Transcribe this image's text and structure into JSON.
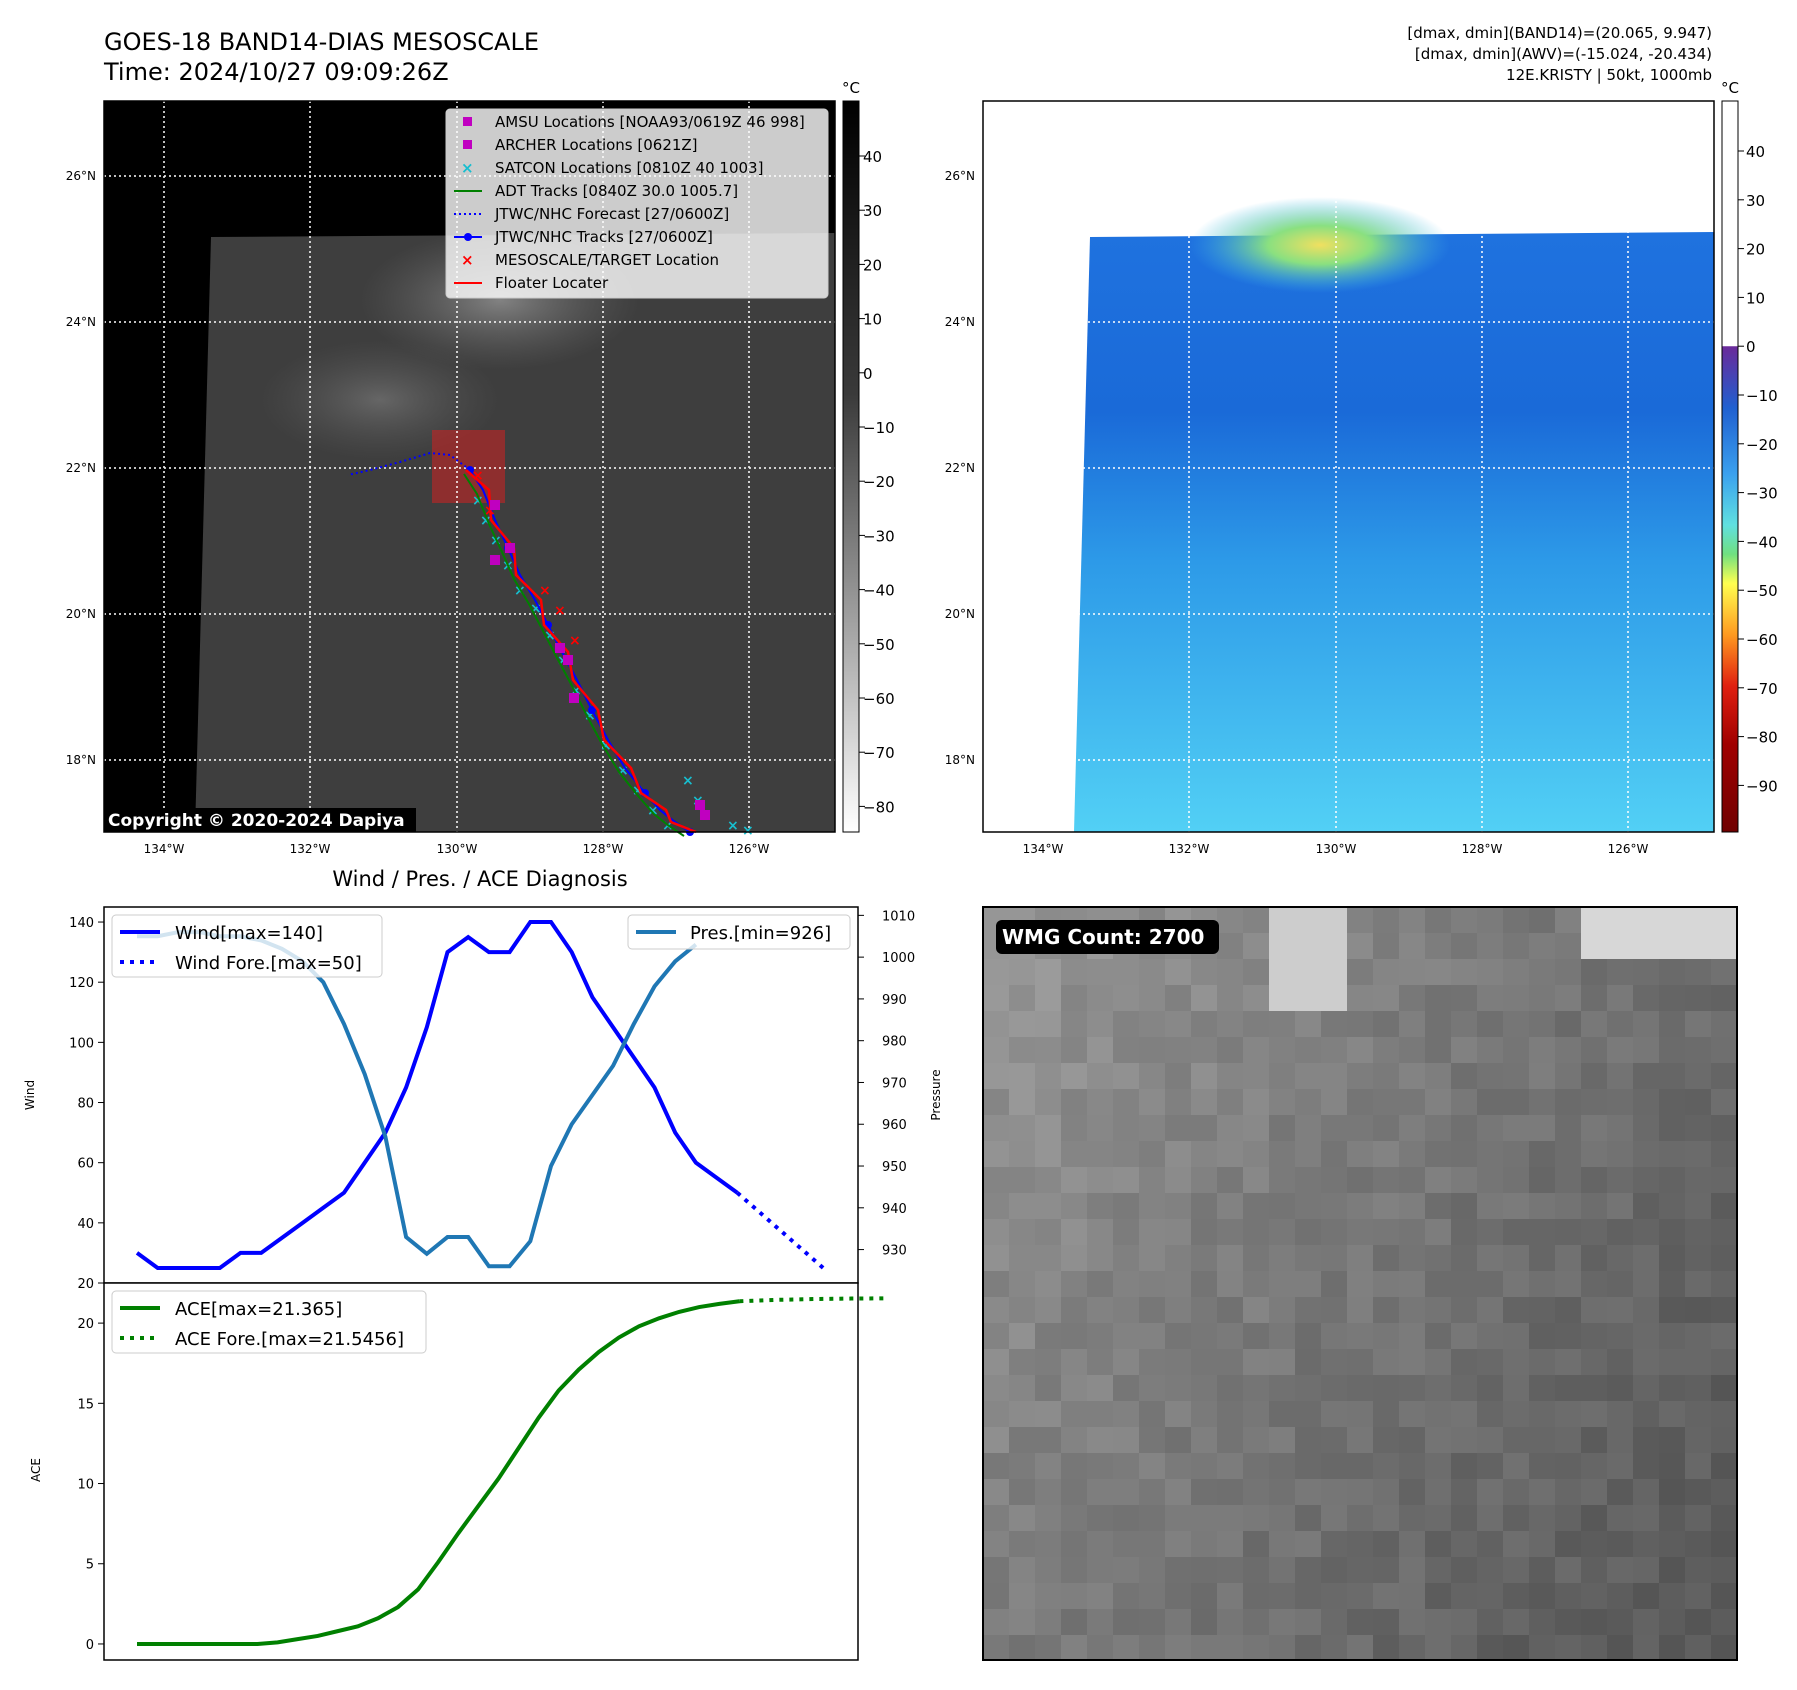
{
  "header": {
    "title_line1": "GOES-18 BAND14-DIAS MESOSCALE",
    "title_line2": "Time: 2024/10/27 09:09:26Z",
    "info_line1": "[dmax, dmin](BAND14)=(20.065, 9.947)",
    "info_line2": "[dmax, dmin](AWV)=(-15.024, -20.434)",
    "info_line3": "12E.KRISTY | 50kt, 1000mb"
  },
  "map": {
    "lat_labels": [
      "26°N",
      "24°N",
      "22°N",
      "20°N",
      "18°N"
    ],
    "lon_labels": [
      "134°W",
      "132°W",
      "130°W",
      "128°W",
      "126°W"
    ],
    "copyright": "Copyright © 2020-2024 Dapiya",
    "unit": "°C",
    "colorbar_left_ticks": [
      "40",
      "30",
      "20",
      "10",
      "0",
      "−10",
      "−20",
      "−30",
      "−40",
      "−50",
      "−60",
      "−70",
      "−80"
    ],
    "colorbar_right_ticks": [
      "40",
      "30",
      "20",
      "10",
      "0",
      "−10",
      "−20",
      "−30",
      "−40",
      "−50",
      "−60",
      "−70",
      "−80",
      "−90"
    ],
    "legend": [
      {
        "label": "AMSU Locations [NOAA93/0619Z 46 998]",
        "color": "#c000c0",
        "marker": "square"
      },
      {
        "label": "ARCHER Locations [0621Z]",
        "color": "#c000c0",
        "marker": "square"
      },
      {
        "label": "SATCON Locations [0810Z 40 1003]",
        "color": "#17becf",
        "marker": "x"
      },
      {
        "label": "ADT Tracks [0840Z 30.0 1005.7]",
        "color": "#008000",
        "marker": "line"
      },
      {
        "label": "JTWC/NHC Forecast [27/0600Z]",
        "color": "#0000ff",
        "marker": "dotted"
      },
      {
        "label": "JTWC/NHC Tracks [27/0600Z]",
        "color": "#0000ff",
        "marker": "line-dot"
      },
      {
        "label": "MESOSCALE/TARGET Location",
        "color": "#ff0000",
        "marker": "x"
      },
      {
        "label": "Floater Locater",
        "color": "#ff0000",
        "marker": "line"
      }
    ]
  },
  "diag": {
    "title": "Wind / Pres. / ACE Diagnosis",
    "wind_ylabel": "Wind",
    "pres_ylabel": "Pressure",
    "ace_ylabel": "ACE",
    "wind_ticks": [
      "140",
      "120",
      "100",
      "80",
      "60",
      "40",
      "20"
    ],
    "pres_ticks": [
      "1010",
      "1000",
      "990",
      "980",
      "970",
      "960",
      "950",
      "940",
      "930"
    ],
    "ace_ticks": [
      "20",
      "15",
      "10",
      "5",
      "0"
    ],
    "legend_wind": "Wind[max=140]",
    "legend_wind_fore": "Wind Fore.[max=50]",
    "legend_pres": "Pres.[min=926]",
    "legend_ace": "ACE[max=21.365]",
    "legend_ace_fore": "ACE Fore.[max=21.5456]",
    "wmg_label": "WMG Count: 2700"
  },
  "chart_data": [
    {
      "type": "line",
      "title": "Wind / Pres. / ACE Diagnosis",
      "ylabel": "Wind",
      "ylim": [
        20,
        145
      ],
      "series": [
        {
          "name": "Wind[max=140]",
          "color": "#0000ff",
          "style": "solid",
          "values": [
            30,
            25,
            25,
            25,
            25,
            30,
            30,
            35,
            40,
            45,
            50,
            60,
            70,
            85,
            105,
            130,
            135,
            130,
            130,
            140,
            140,
            130,
            115,
            105,
            95,
            85,
            70,
            60,
            55,
            50
          ]
        },
        {
          "name": "Wind Fore.[max=50]",
          "color": "#0000ff",
          "style": "dotted",
          "values": [
            50,
            45,
            40,
            35,
            30,
            25
          ]
        }
      ]
    },
    {
      "type": "line",
      "ylabel": "Pressure",
      "ylim": [
        922,
        1012
      ],
      "series": [
        {
          "name": "Pres.[min=926]",
          "color": "#1f77b4",
          "style": "solid",
          "values": [
            1005,
            1005,
            1006,
            1006,
            1005,
            1005,
            1004,
            1002,
            999,
            994,
            984,
            972,
            957,
            933,
            929,
            933,
            933,
            926,
            926,
            932,
            950,
            960,
            967,
            974,
            984,
            993,
            999,
            1003
          ]
        }
      ]
    },
    {
      "type": "line",
      "ylabel": "ACE",
      "ylim": [
        -1,
        22.5
      ],
      "series": [
        {
          "name": "ACE[max=21.365]",
          "color": "#008000",
          "style": "solid",
          "values": [
            0,
            0,
            0,
            0,
            0,
            0,
            0,
            0.1,
            0.3,
            0.5,
            0.8,
            1.1,
            1.6,
            2.3,
            3.4,
            5.1,
            6.9,
            8.6,
            10.3,
            12.2,
            14.1,
            15.8,
            17.1,
            18.2,
            19.1,
            19.8,
            20.3,
            20.7,
            21.0,
            21.2,
            21.365
          ]
        },
        {
          "name": "ACE Fore.[max=21.5456]",
          "color": "#008000",
          "style": "dotted",
          "values": [
            21.365,
            21.45,
            21.5,
            21.53,
            21.5456
          ]
        }
      ]
    }
  ]
}
